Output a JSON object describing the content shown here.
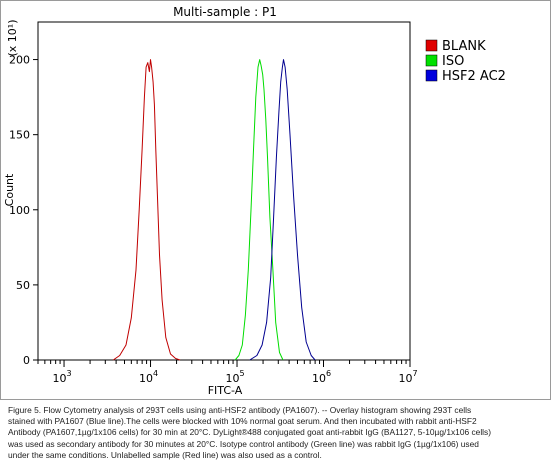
{
  "chart_data": {
    "type": "line",
    "title": "Multi-sample : P1",
    "xlabel": "FITC-A",
    "ylabel": "Count",
    "y_scale_note": "(x 10¹)",
    "x_scale": "log",
    "xlim": [
      500,
      10000000
    ],
    "ylim": [
      0,
      225
    ],
    "x_ticks": [
      1000,
      10000,
      100000,
      1000000,
      10000000
    ],
    "x_tick_labels": [
      {
        "base": "10",
        "exp": "3"
      },
      {
        "base": "10",
        "exp": "4"
      },
      {
        "base": "10",
        "exp": "5"
      },
      {
        "base": "10",
        "exp": "6"
      },
      {
        "base": "10",
        "exp": "7"
      }
    ],
    "y_ticks": [
      0,
      50,
      100,
      150,
      200
    ],
    "y_tick_labels": [
      "0",
      "50",
      "100",
      "150",
      "200"
    ],
    "legend_position": "right",
    "series": [
      {
        "name": "BLANK",
        "color": "#c00000",
        "legend_color": "#e00000",
        "x": [
          3700,
          4400,
          5200,
          6000,
          6800,
          7400,
          8000,
          8500,
          8900,
          9300,
          9700,
          10000,
          10300,
          10700,
          11100,
          11500,
          12000,
          12700,
          13600,
          15000,
          17000,
          19500,
          22000
        ],
        "y": [
          0,
          3,
          10,
          28,
          60,
          100,
          140,
          175,
          195,
          198,
          192,
          200,
          195,
          185,
          170,
          140,
          110,
          70,
          40,
          15,
          4,
          1,
          0
        ]
      },
      {
        "name": "ISO",
        "color": "#00dd00",
        "legend_color": "#00e000",
        "x": [
          95000,
          105000,
          115000,
          125000,
          135000,
          145000,
          155000,
          165000,
          175000,
          183000,
          190000,
          198000,
          205000,
          215000,
          225000,
          240000,
          260000,
          280000,
          310000,
          340000
        ],
        "y": [
          0,
          3,
          10,
          30,
          60,
          100,
          140,
          175,
          195,
          200,
          196,
          190,
          180,
          160,
          135,
          95,
          60,
          25,
          5,
          0
        ]
      },
      {
        "name": "HSF2 AC2",
        "color": "#000090",
        "legend_color": "#0000dd",
        "x": [
          140000,
          170000,
          195000,
          220000,
          245000,
          265000,
          285000,
          305000,
          320000,
          335000,
          345000,
          360000,
          380000,
          410000,
          450000,
          500000,
          560000,
          630000,
          720000,
          800000
        ],
        "y": [
          0,
          3,
          10,
          25,
          55,
          95,
          135,
          165,
          185,
          195,
          200,
          195,
          180,
          150,
          110,
          70,
          35,
          12,
          3,
          0
        ]
      }
    ]
  },
  "caption": {
    "lines": [
      "Figure 5. Flow Cytometry analysis of 293T cells using anti-HSF2 antibody (PA1607). -- Overlay histogram showing 293T cells",
      "stained with PA1607 (Blue line).The cells were blocked with 10% normal goat serum. And then incubated with rabbit anti-HSF2",
      "Antibody (PA1607,1µg/1x106 cells) for 30 min at 20°C. DyLight®488 conjugated goat anti-rabbit IgG (BA1127, 5-10µg/1x106 cells)",
      "was used as secondary antibody for 30 minutes at 20°C. Isotype control antibody (Green line) was rabbit IgG (1µg/1x106) used",
      "under the same conditions. Unlabelled sample (Red line) was also used as a control."
    ]
  }
}
